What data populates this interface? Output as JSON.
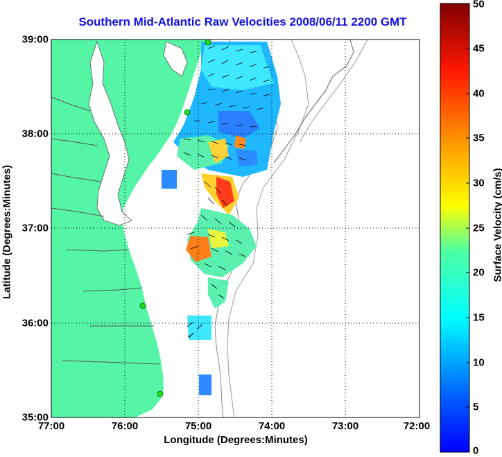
{
  "title": "Southern Mid-Atlantic Raw Velocities 2008/06/11 2200 GMT",
  "x_axis": {
    "label": "Longitude (Degrees:Minutes)",
    "ticks": [
      "77:00",
      "76:00",
      "75:00",
      "74:00",
      "73:00",
      "72:00"
    ]
  },
  "y_axis": {
    "label": "Latitude (Degrees:Minutes)",
    "ticks": [
      "39:00",
      "38:00",
      "37:00",
      "36:00",
      "35:00"
    ]
  },
  "colorbar": {
    "label": "Surface Velocity (cm/s)",
    "ticks": [
      "50",
      "45",
      "40",
      "35",
      "30",
      "25",
      "20",
      "15",
      "10",
      "5",
      "0"
    ],
    "min": 0,
    "max": 50,
    "colormap": "jet"
  },
  "colors": {
    "land": "#56f5a5",
    "title": "#1010e0",
    "station_marker": "#22dd22"
  },
  "map": {
    "lon_range": [
      -77,
      -72
    ],
    "lat_range": [
      35,
      39
    ],
    "grid": "dotted"
  }
}
